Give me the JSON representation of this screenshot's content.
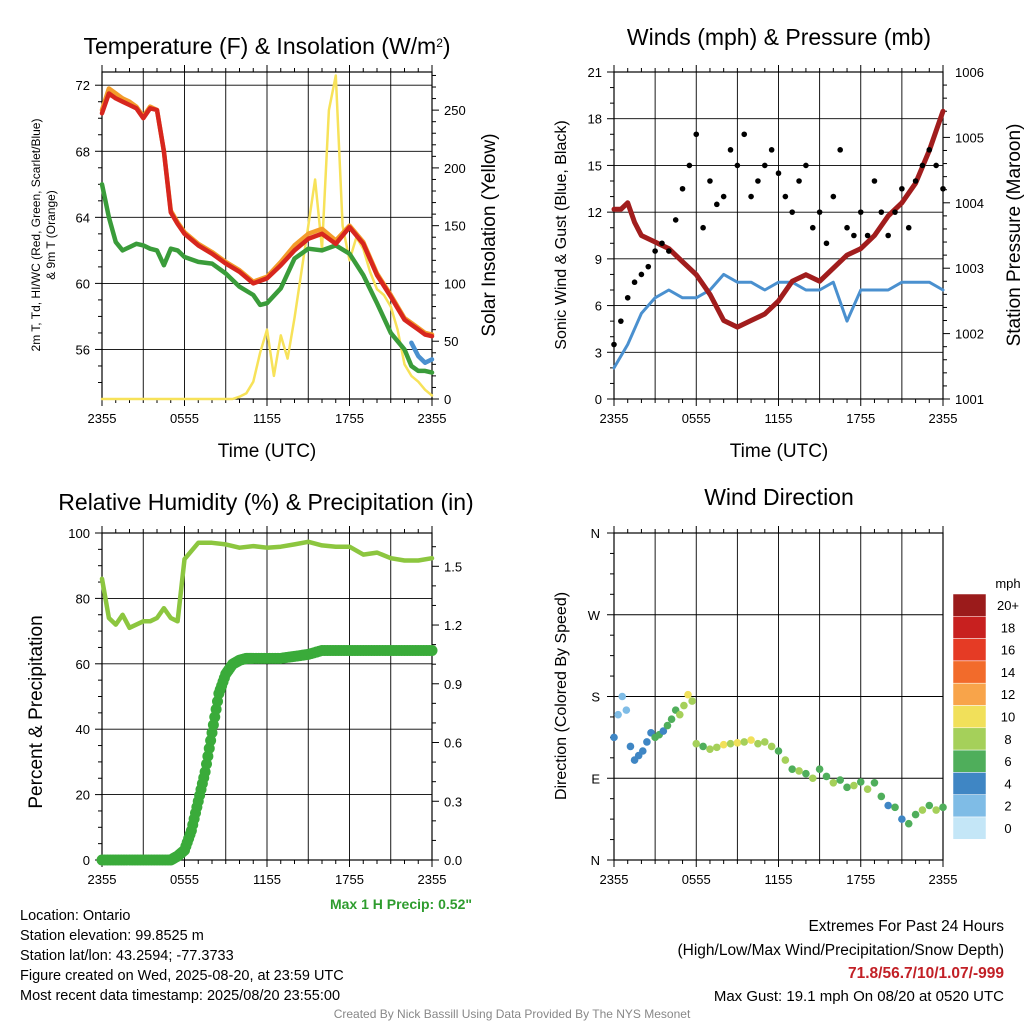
{
  "colors": {
    "temp": "#d7261e",
    "dewpoint": "#3a9c3a",
    "heatindex": "#f0c419",
    "t9m": "#f39c2a",
    "solar": "#f7e259",
    "wind": "#4a90cf",
    "gust": "#000000",
    "pressure": "#a11d1d",
    "rh": "#8cc63f",
    "precip": "#3aab3a",
    "precip_label": "#2e9c2e",
    "extremes": "#c22026",
    "credit": "#888888"
  },
  "wind_scale": {
    "unit": "mph",
    "labels": [
      "20+",
      "18",
      "16",
      "14",
      "12",
      "10",
      "8",
      "6",
      "4",
      "2",
      "0"
    ],
    "colors": [
      "#9b1b1b",
      "#c8201f",
      "#e53b25",
      "#f26b2b",
      "#f8a44a",
      "#f1e05a",
      "#a5d05a",
      "#4fae5b",
      "#3f86c4",
      "#7fbce6",
      "#c4e6f7"
    ]
  },
  "chart_data": [
    {
      "type": "line",
      "title": "Temperature (F) & Insolation (W/m²)",
      "xlabel": "Time (UTC)",
      "ylabel": "2m T, T_d, HI/WC (Red, Green, Scarlet/Blue) & 9m T (Orange)",
      "y2label": "Solar Insolation (Yellow)",
      "x_ticks": [
        "2355",
        "0555",
        "1155",
        "1755",
        "2355"
      ],
      "y_ticks": [
        "56",
        "60",
        "64",
        "68",
        "72"
      ],
      "y2_ticks": [
        "0",
        "50",
        "100",
        "150",
        "200",
        "250"
      ],
      "ylim": [
        53,
        72.8
      ],
      "y2lim": [
        0,
        283
      ],
      "xlim": [
        0,
        24
      ],
      "series": [
        {
          "key": "temp",
          "axis": "left",
          "x": [
            0,
            0.5,
            1,
            1.5,
            2,
            2.5,
            3,
            3.5,
            4,
            4.5,
            5,
            5.5,
            6,
            7,
            8,
            9,
            10,
            11,
            12,
            13,
            14,
            15,
            16,
            17,
            18,
            19,
            20,
            21,
            21.5,
            22,
            22.5,
            23,
            23.5,
            24
          ],
          "values": [
            70.3,
            71.5,
            71.2,
            71,
            70.8,
            70.6,
            70,
            70.6,
            70.5,
            68,
            64.3,
            63.6,
            63,
            62.3,
            61.8,
            61.2,
            60.7,
            60,
            60.3,
            61.1,
            62,
            62.7,
            63,
            62.4,
            63.4,
            62.4,
            60.5,
            59.2,
            58.5,
            57.8,
            57.5,
            57.2,
            56.9,
            56.8
          ]
        },
        {
          "key": "t9m",
          "axis": "left",
          "x": [
            0,
            0.5,
            1,
            1.5,
            2,
            2.5,
            3,
            3.5,
            4,
            4.5,
            5,
            5.5,
            6,
            7,
            8,
            9,
            10,
            11,
            12,
            13,
            14,
            15,
            16,
            17,
            18,
            19,
            20,
            21,
            21.5,
            22,
            22.5,
            23,
            23.5,
            24
          ],
          "values": [
            70.5,
            71.8,
            71.5,
            71.2,
            71,
            70.7,
            70.1,
            70.7,
            70.5,
            68,
            64.4,
            63.7,
            63.1,
            62.4,
            61.9,
            61.3,
            60.8,
            60.1,
            60.4,
            61.3,
            62.3,
            63,
            63.3,
            62.6,
            63.5,
            62.5,
            60.6,
            59.3,
            58.6,
            57.9,
            57.6,
            57.3,
            57,
            56.9
          ]
        },
        {
          "key": "dewpoint",
          "axis": "left",
          "x": [
            0,
            0.5,
            1,
            1.5,
            2,
            2.5,
            3,
            3.5,
            4,
            4.5,
            5,
            5.5,
            6,
            7,
            8,
            9,
            10,
            11,
            11.5,
            12,
            13,
            14,
            15,
            16,
            17,
            18,
            19,
            20,
            21,
            21.5,
            22,
            22.5,
            23,
            23.5,
            24
          ],
          "values": [
            66,
            64,
            62.5,
            62,
            62.2,
            62.4,
            62.3,
            62.1,
            62,
            61.1,
            62.1,
            62,
            61.6,
            61.3,
            61.2,
            60.6,
            59.8,
            59.3,
            58.7,
            58.8,
            59.7,
            61.5,
            62.1,
            62,
            62.3,
            61.8,
            60.5,
            58.8,
            57,
            56.5,
            56,
            55,
            54.7,
            54.7,
            54.6
          ]
        },
        {
          "key": "heatindex",
          "axis": "left",
          "x": [
            22.5,
            23,
            23.5,
            24
          ],
          "values": [
            56.4,
            55.6,
            55.2,
            55.4
          ]
        },
        {
          "key": "solar",
          "axis": "right",
          "x": [
            0,
            1,
            2,
            3,
            4,
            5,
            6,
            7,
            8,
            9,
            9.5,
            10,
            10.5,
            11,
            11.5,
            12,
            12.5,
            13,
            13.5,
            14,
            14.5,
            15,
            15.5,
            16,
            16.5,
            17,
            17.5,
            18,
            18.5,
            19,
            19.5,
            20,
            20.5,
            21,
            21.5,
            22,
            22.5,
            23,
            23.5,
            24
          ],
          "values": [
            0,
            0,
            0,
            0,
            0,
            0,
            0,
            0,
            0,
            0,
            0,
            2,
            5,
            15,
            40,
            60,
            20,
            55,
            35,
            70,
            110,
            150,
            190,
            130,
            250,
            280,
            150,
            120,
            140,
            130,
            110,
            95,
            90,
            80,
            60,
            30,
            20,
            15,
            8,
            3
          ]
        }
      ]
    },
    {
      "type": "line",
      "title": "Winds (mph) & Pressure (mb)",
      "xlabel": "Time (UTC)",
      "ylabel": "Sonic Wind & Gust (Blue, Black)",
      "y2label": "Station Pressure (Maroon)",
      "x_ticks": [
        "2355",
        "0555",
        "1155",
        "1755",
        "2355"
      ],
      "y_ticks": [
        "0",
        "3",
        "6",
        "9",
        "12",
        "15",
        "18",
        "21"
      ],
      "y2_ticks": [
        "1001",
        "1002",
        "1003",
        "1004",
        "1005",
        "1006"
      ],
      "ylim": [
        0,
        21
      ],
      "y2lim": [
        1001,
        1006
      ],
      "xlim": [
        0,
        24
      ],
      "series": [
        {
          "key": "pressure",
          "axis": "right",
          "x": [
            0,
            0.5,
            1,
            1.5,
            2,
            3,
            4,
            5,
            6,
            7,
            8,
            9,
            10,
            11,
            12,
            13,
            14,
            15,
            16,
            17,
            18,
            19,
            20,
            21,
            22,
            23,
            23.5,
            24
          ],
          "values": [
            1003.9,
            1003.9,
            1004.0,
            1003.7,
            1003.5,
            1003.4,
            1003.3,
            1003.1,
            1002.9,
            1002.6,
            1002.2,
            1002.1,
            1002.2,
            1002.3,
            1002.5,
            1002.8,
            1002.9,
            1002.8,
            1003.0,
            1003.2,
            1003.3,
            1003.5,
            1003.8,
            1004.0,
            1004.3,
            1004.8,
            1005.1,
            1005.4
          ]
        },
        {
          "key": "wind",
          "axis": "left",
          "x": [
            0,
            1,
            2,
            3,
            4,
            5,
            6,
            7,
            8,
            9,
            10,
            11,
            12,
            13,
            14,
            15,
            16,
            17,
            18,
            19,
            20,
            21,
            22,
            23,
            24
          ],
          "values": [
            2,
            3.5,
            5.5,
            6.5,
            7,
            6.5,
            6.5,
            7,
            8,
            7.5,
            7.5,
            7,
            7.5,
            7.5,
            7,
            7,
            7.5,
            5,
            7,
            7,
            7,
            7.5,
            7.5,
            7.5,
            7
          ]
        },
        {
          "key": "gust",
          "axis": "left",
          "x": [
            0,
            0.5,
            1,
            1.5,
            2,
            2.5,
            3,
            3.5,
            4,
            4.5,
            5,
            5.5,
            6,
            6.5,
            7,
            7.5,
            8,
            8.5,
            9,
            9.5,
            10,
            10.5,
            11,
            11.5,
            12,
            12.5,
            13,
            13.5,
            14,
            14.5,
            15,
            15.5,
            16,
            16.5,
            17,
            17.5,
            18,
            18.5,
            19,
            19.5,
            20,
            20.5,
            21,
            21.5,
            22,
            22.5,
            23,
            23.5,
            24
          ],
          "values": [
            3.5,
            5,
            6.5,
            7.5,
            8,
            8.5,
            9.5,
            10,
            9.5,
            11.5,
            13.5,
            15,
            17,
            11,
            14,
            12.5,
            13,
            16,
            15,
            17,
            13,
            14,
            15,
            16,
            14.5,
            13,
            12,
            14,
            15,
            11,
            12,
            10,
            13,
            16,
            11,
            10.5,
            12,
            10.5,
            14,
            12,
            10.5,
            12,
            13.5,
            11,
            14,
            15,
            16,
            15,
            13.5
          ]
        }
      ]
    },
    {
      "type": "line",
      "title": "Relative Humidity (%) & Precipitation (in)",
      "xlabel": "",
      "ylabel": "Percent & Precipitation",
      "x_ticks": [
        "2355",
        "0555",
        "1155",
        "1755",
        "2355"
      ],
      "y_ticks": [
        "0",
        "20",
        "40",
        "60",
        "80",
        "100"
      ],
      "y2_ticks": [
        "0.0",
        "0.3",
        "0.6",
        "0.9",
        "1.2",
        "1.5"
      ],
      "ylim": [
        0,
        100
      ],
      "y2lim": [
        0,
        1.67
      ],
      "xlim": [
        0,
        24
      ],
      "series": [
        {
          "key": "rh",
          "axis": "left",
          "x": [
            0,
            0.5,
            1,
            1.5,
            2,
            2.5,
            3,
            3.5,
            4,
            4.5,
            5,
            5.5,
            6,
            7,
            8,
            9,
            10,
            11,
            12,
            13,
            14,
            15,
            16,
            17,
            18,
            19,
            20,
            21,
            22,
            23,
            24
          ],
          "values": [
            86,
            74,
            72,
            75,
            71,
            72,
            73,
            73,
            74,
            77,
            74,
            73,
            92,
            97,
            97,
            96.5,
            95.5,
            96,
            95.5,
            95.8,
            96.5,
            97.3,
            96.2,
            95.8,
            95.8,
            93.4,
            94,
            92.3,
            91.6,
            91.6,
            92.3
          ]
        },
        {
          "key": "precip",
          "axis": "right",
          "x": [
            0,
            1,
            2,
            3,
            4,
            5,
            5.5,
            6,
            6.5,
            7,
            7.5,
            8,
            8.5,
            9,
            9.5,
            10,
            10.5,
            11,
            12,
            13,
            14,
            15,
            16,
            17,
            18,
            19,
            20,
            21,
            22,
            23,
            24
          ],
          "values": [
            0,
            0,
            0,
            0,
            0,
            0,
            0.02,
            0.05,
            0.15,
            0.3,
            0.45,
            0.65,
            0.85,
            0.95,
            1.0,
            1.02,
            1.03,
            1.03,
            1.03,
            1.03,
            1.04,
            1.05,
            1.07,
            1.07,
            1.07,
            1.07,
            1.07,
            1.07,
            1.07,
            1.07,
            1.07
          ]
        }
      ]
    },
    {
      "type": "scatter",
      "title": "Wind Direction",
      "xlabel": "",
      "ylabel": "Direction (Colored By Speed)",
      "x_ticks": [
        "2355",
        "0555",
        "1155",
        "1755",
        "2355"
      ],
      "y_ticks": [
        "N",
        "E",
        "S",
        "W",
        "N"
      ],
      "ylim": [
        0,
        360
      ],
      "xlim": [
        0,
        24
      ],
      "legend": "right",
      "x": [
        0,
        0.3,
        0.6,
        0.9,
        1.2,
        1.5,
        1.8,
        2.1,
        2.4,
        2.7,
        3,
        3.3,
        3.6,
        3.9,
        4.2,
        4.5,
        4.8,
        5.1,
        5.4,
        5.7,
        6,
        6.5,
        7,
        7.5,
        8,
        8.5,
        9,
        9.5,
        10,
        10.5,
        11,
        11.5,
        12,
        12.5,
        13,
        13.5,
        14,
        14.5,
        15,
        15.5,
        16,
        16.5,
        17,
        17.5,
        18,
        18.5,
        19,
        19.5,
        20,
        20.5,
        21,
        21.5,
        22,
        22.5,
        23,
        23.5,
        24
      ],
      "values": [
        135,
        160,
        180,
        165,
        125,
        110,
        115,
        120,
        130,
        140,
        135,
        138,
        142,
        148,
        155,
        165,
        160,
        170,
        182,
        175,
        128,
        125,
        122,
        124,
        127,
        128,
        129,
        130,
        132,
        128,
        130,
        125,
        120,
        110,
        100,
        98,
        95,
        90,
        100,
        92,
        85,
        88,
        80,
        82,
        86,
        78,
        85,
        70,
        60,
        58,
        45,
        40,
        50,
        55,
        60,
        55,
        58
      ],
      "speeds": [
        3,
        2,
        1,
        2,
        4,
        4,
        4,
        4,
        4,
        4,
        5,
        5,
        4,
        5,
        6,
        6,
        7,
        8,
        9,
        8,
        7,
        6,
        7,
        8,
        9,
        8,
        9,
        8,
        9,
        8,
        8,
        7,
        6,
        7,
        6,
        7,
        6,
        7,
        6,
        6,
        7,
        6,
        6,
        7,
        6,
        7,
        5,
        6,
        4,
        5,
        4,
        6,
        5,
        7,
        6,
        8,
        6
      ]
    }
  ],
  "footer": {
    "location": "Location: Ontario",
    "elevation": "Station elevation: 99.8525 m",
    "latlon": "Station lat/lon: 43.2594; -77.3733",
    "created": "Figure created on Wed, 2025-08-20, at 23:59 UTC",
    "recent": "Most recent data timestamp: 2025/08/20 23:55:00",
    "max_precip": "Max 1 H Precip: 0.52\"",
    "extremes_title": "Extremes For Past 24 Hours",
    "extremes_sub": "(High/Low/Max Wind/Precipitation/Snow Depth)",
    "extremes_values": "71.8/56.7/10/1.07/-999",
    "max_gust": "Max Gust: 19.1 mph On 08/20 at 0520 UTC",
    "credit": "Created By Nick Bassill Using Data Provided By The NYS Mesonet"
  }
}
